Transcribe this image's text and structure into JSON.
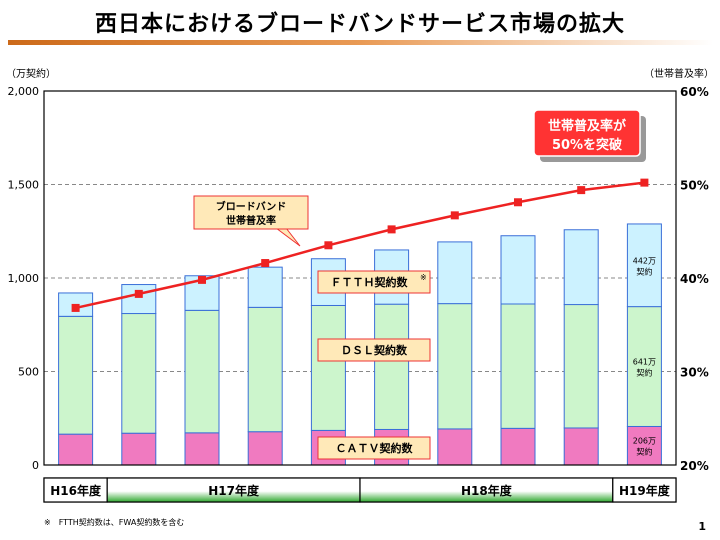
{
  "page": {
    "title": "西日本におけるブロードバンドサービス市場の拡大",
    "footnote": "※　FTTH契約数は、FWA契約数を含む",
    "page_number": "1"
  },
  "colors": {
    "catv": "#f07ac0",
    "dsl": "#ccf5cc",
    "ftth": "#ccf2ff",
    "bar_border": "#3a6fd8",
    "line": "#ee2222",
    "label_fill": "#ffe9b8",
    "label_border": "#ee3333",
    "callout_fill": "#ff3333",
    "period_fill": "#3ab53a"
  },
  "chart_data": {
    "type": "bar",
    "stacked": true,
    "left_axis": {
      "label": "（万契約）",
      "min": 0,
      "max": 2000,
      "ticks": [
        0,
        500,
        1000,
        1500,
        2000
      ],
      "tick_labels": [
        "0",
        "500",
        "1,000",
        "1,500",
        "2,000"
      ]
    },
    "right_axis": {
      "label": "（世帯普及率）",
      "min": 20,
      "max": 60,
      "ticks": [
        20,
        30,
        40,
        50,
        60
      ],
      "tick_labels": [
        "20%",
        "30%",
        "40%",
        "50%",
        "60%"
      ]
    },
    "grid": "dashed",
    "series": [
      {
        "name": "ＣＡＴＶ契約数",
        "values": [
          165,
          170,
          172,
          178,
          185,
          190,
          193,
          196,
          198,
          206
        ]
      },
      {
        "name": "ＤＳＬ契約数",
        "values": [
          630,
          640,
          655,
          665,
          668,
          670,
          670,
          665,
          660,
          641
        ]
      },
      {
        "name": "ＦＴＴＨ契約数",
        "values": [
          125,
          155,
          185,
          215,
          250,
          290,
          330,
          365,
          400,
          442
        ]
      }
    ],
    "line_series": {
      "name": "ブロードバンド世帯普及率",
      "axis": "right",
      "values": [
        36.8,
        38.3,
        39.8,
        41.6,
        43.5,
        45.2,
        46.7,
        48.1,
        49.4,
        50.2
      ]
    },
    "series_labels": {
      "ftth": "ＦＴＴＨ契約数",
      "ftth_note": "※",
      "dsl": "ＤＳＬ契約数",
      "catv": "ＣＡＴＶ契約数"
    },
    "line_label": [
      "ブロードバンド",
      "世帯普及率"
    ],
    "callout": [
      "世帯普及率が",
      "50%を突破"
    ],
    "value_labels": [
      {
        "series": "ftth",
        "lines": [
          "442万",
          "契約"
        ]
      },
      {
        "series": "dsl",
        "lines": [
          "641万",
          "契約"
        ]
      },
      {
        "series": "catv",
        "lines": [
          "206万",
          "契約"
        ]
      }
    ],
    "periods": [
      {
        "label": "H16年度",
        "bars": 1
      },
      {
        "label": "H17年度",
        "bars": 4
      },
      {
        "label": "H18年度",
        "bars": 4
      },
      {
        "label": "H19年度",
        "bars": 1
      }
    ]
  }
}
